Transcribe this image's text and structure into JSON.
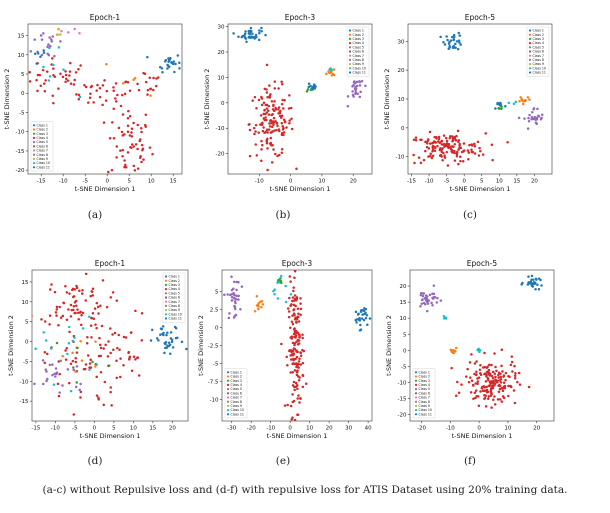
{
  "caption": "(a-c) without Repulsive loss and (d-f) with repulsive loss for ATIS Dataset using 20% training data.",
  "classes": [
    "Class 1",
    "Class 2",
    "Class 3",
    "Class 4",
    "Class 5",
    "Class 6",
    "Class 7",
    "Class 8",
    "Class 9",
    "Class 10",
    "Class 11"
  ],
  "class_colors": [
    "#1f77b4",
    "#ff7f0e",
    "#2ca02c",
    "#d62728",
    "#9467bd",
    "#8c564b",
    "#e377c2",
    "#7f7f7f",
    "#bcbd22",
    "#17becf",
    "#1f77b4"
  ],
  "chart_data": [
    {
      "type": "scatter",
      "panel_label": "(a)",
      "title": "Epoch-1",
      "xlabel": "t-SNE Dimension 1",
      "ylabel": "t-SNE Dimension 2",
      "xlim": [
        -18,
        17
      ],
      "ylim": [
        -21,
        18
      ],
      "xticks": [
        -15,
        -10,
        -5,
        0,
        5,
        10,
        15
      ],
      "yticks": [
        -20,
        -15,
        -10,
        -5,
        0,
        5,
        10,
        15
      ],
      "legend": "bottom-left",
      "clusters": [
        {
          "class": 4,
          "cx": -11,
          "cy": 4,
          "sx": 4,
          "sy": 2.5,
          "n": 40
        },
        {
          "class": 4,
          "cx": -1,
          "cy": 0,
          "sx": 3.5,
          "sy": 2,
          "n": 30
        },
        {
          "class": 4,
          "cx": 5,
          "cy": -13,
          "sx": 2.5,
          "sy": 5,
          "n": 60
        },
        {
          "class": 4,
          "cx": 9,
          "cy": 3,
          "sx": 2,
          "sy": 2,
          "n": 15
        },
        {
          "class": 5,
          "cx": -13,
          "cy": 13,
          "sx": 2,
          "sy": 2.5,
          "n": 18
        },
        {
          "class": 1,
          "cx": 14,
          "cy": 8,
          "sx": 1.4,
          "sy": 1.2,
          "n": 25
        },
        {
          "class": 1,
          "cx": -15,
          "cy": 10,
          "sx": 1,
          "sy": 1,
          "n": 6
        },
        {
          "class": 10,
          "cx": -13,
          "cy": 5,
          "sx": 2.5,
          "sy": 3,
          "n": 8
        },
        {
          "class": 2,
          "cx": 7,
          "cy": 4,
          "sx": 4,
          "sy": 3,
          "n": 5
        },
        {
          "class": 7,
          "cx": -9,
          "cy": 16,
          "sx": 1.5,
          "sy": 1,
          "n": 5
        },
        {
          "class": 9,
          "cx": -11,
          "cy": 16,
          "sx": 1,
          "sy": 0.8,
          "n": 4
        }
      ]
    },
    {
      "type": "scatter",
      "panel_label": "(b)",
      "title": "Epoch-3",
      "xlabel": "t-SNE Dimension 1",
      "ylabel": "t-SNE Dimension 2",
      "xlim": [
        -20,
        26
      ],
      "ylim": [
        -28,
        31
      ],
      "xticks": [
        -10,
        0,
        10,
        20
      ],
      "yticks": [
        -20,
        -10,
        0,
        10,
        20,
        30
      ],
      "legend": "top-right",
      "clusters": [
        {
          "class": 1,
          "cx": -13,
          "cy": 27,
          "sx": 1.8,
          "sy": 1.4,
          "n": 35
        },
        {
          "class": 4,
          "cx": -6,
          "cy": -8,
          "sx": 3.5,
          "sy": 7,
          "n": 150
        },
        {
          "class": 1,
          "cx": 7,
          "cy": 6,
          "sx": 0.8,
          "sy": 1,
          "n": 12
        },
        {
          "class": 2,
          "cx": 13,
          "cy": 12,
          "sx": 0.6,
          "sy": 0.7,
          "n": 12
        },
        {
          "class": 5,
          "cx": 21,
          "cy": 5,
          "sx": 1.2,
          "sy": 2.5,
          "n": 28
        },
        {
          "class": 3,
          "cx": 6,
          "cy": 5,
          "sx": 0.5,
          "sy": 0.5,
          "n": 3
        },
        {
          "class": 10,
          "cx": 13,
          "cy": 13,
          "sx": 0.5,
          "sy": 0.5,
          "n": 3
        }
      ]
    },
    {
      "type": "scatter",
      "panel_label": "(c)",
      "title": "Epoch-5",
      "xlabel": "t-SNE Dimension 1",
      "ylabel": "t-SNE Dimension 2",
      "xlim": [
        -16,
        25
      ],
      "ylim": [
        -16,
        36
      ],
      "xticks": [
        -15,
        -10,
        -5,
        0,
        5,
        10,
        15,
        20
      ],
      "yticks": [
        -10,
        0,
        10,
        20,
        30
      ],
      "legend": "top-right",
      "clusters": [
        {
          "class": 1,
          "cx": -3,
          "cy": 30,
          "sx": 1.3,
          "sy": 1.5,
          "n": 30
        },
        {
          "class": 4,
          "cx": -5,
          "cy": -7,
          "sx": 5.5,
          "sy": 2.5,
          "n": 150
        },
        {
          "class": 1,
          "cx": 10,
          "cy": 8,
          "sx": 0.8,
          "sy": 0.8,
          "n": 10
        },
        {
          "class": 2,
          "cx": 17,
          "cy": 10,
          "sx": 1,
          "sy": 0.6,
          "n": 12
        },
        {
          "class": 5,
          "cx": 20,
          "cy": 3,
          "sx": 1.5,
          "sy": 2,
          "n": 28
        },
        {
          "class": 3,
          "cx": 10,
          "cy": 7,
          "sx": 0.4,
          "sy": 0.4,
          "n": 3
        },
        {
          "class": 10,
          "cx": 14,
          "cy": 9,
          "sx": 0.6,
          "sy": 0.6,
          "n": 3
        }
      ]
    },
    {
      "type": "scatter",
      "panel_label": "(d)",
      "title": "Epoch-1",
      "xlabel": "t-SNE Dimension 1",
      "ylabel": "t-SNE Dimension 2",
      "xlim": [
        -16,
        24
      ],
      "ylim": [
        -20,
        18
      ],
      "xticks": [
        -15,
        -10,
        -5,
        0,
        5,
        10,
        15,
        20
      ],
      "yticks": [
        -15,
        -10,
        -5,
        0,
        5,
        10,
        15
      ],
      "legend": "top-right",
      "clusters": [
        {
          "class": 4,
          "cx": -5,
          "cy": 10,
          "sx": 4.5,
          "sy": 3,
          "n": 70
        },
        {
          "class": 4,
          "cx": -3,
          "cy": -5,
          "sx": 5,
          "sy": 6,
          "n": 70
        },
        {
          "class": 4,
          "cx": 8,
          "cy": -3,
          "sx": 3,
          "sy": 5,
          "n": 25
        },
        {
          "class": 1,
          "cx": 19,
          "cy": 0,
          "sx": 2,
          "sy": 2,
          "n": 35
        },
        {
          "class": 5,
          "cx": -9,
          "cy": -8,
          "sx": 4,
          "sy": 3,
          "n": 25
        },
        {
          "class": 10,
          "cx": -8,
          "cy": -2,
          "sx": 4,
          "sy": 4,
          "n": 15
        },
        {
          "class": 2,
          "cx": -4,
          "cy": -3,
          "sx": 4,
          "sy": 3,
          "n": 8
        },
        {
          "class": 3,
          "cx": -2,
          "cy": -4,
          "sx": 4,
          "sy": 3,
          "n": 6
        }
      ]
    },
    {
      "type": "scatter",
      "panel_label": "(e)",
      "title": "Epoch-3",
      "xlabel": "t-SNE Dimension 1",
      "ylabel": "t-SNE Dimension 2",
      "xlim": [
        -35,
        42
      ],
      "ylim": [
        -13,
        8
      ],
      "xticks": [
        -30,
        -20,
        -10,
        0,
        10,
        20,
        30,
        40
      ],
      "yticks": [
        -10,
        -7.5,
        -5,
        -2.5,
        0,
        2.5,
        5
      ],
      "legend": "bottom-left",
      "clusters": [
        {
          "class": 5,
          "cx": -29,
          "cy": 4,
          "sx": 1.6,
          "sy": 1.4,
          "n": 35
        },
        {
          "class": 4,
          "cx": 3,
          "cy": -3,
          "sx": 2,
          "sy": 4.5,
          "n": 170
        },
        {
          "class": 1,
          "cx": 36,
          "cy": 1.5,
          "sx": 1.8,
          "sy": 0.8,
          "n": 30
        },
        {
          "class": 2,
          "cx": -16,
          "cy": 3,
          "sx": 1,
          "sy": 0.6,
          "n": 12
        },
        {
          "class": 10,
          "cx": -5,
          "cy": 5.5,
          "sx": 2,
          "sy": 1.2,
          "n": 12
        },
        {
          "class": 3,
          "cx": -5,
          "cy": 6,
          "sx": 1,
          "sy": 0.6,
          "n": 4
        }
      ]
    },
    {
      "type": "scatter",
      "panel_label": "(f)",
      "title": "Epoch-5",
      "xlabel": "t-SNE Dimension 1",
      "ylabel": "t-SNE Dimension 2",
      "xlim": [
        -24,
        26
      ],
      "ylim": [
        -22,
        25
      ],
      "xticks": [
        -20,
        -10,
        0,
        10,
        20
      ],
      "yticks": [
        -20,
        -15,
        -10,
        -5,
        0,
        5,
        10,
        15,
        20
      ],
      "legend": "bottom-left",
      "clusters": [
        {
          "class": 5,
          "cx": -18,
          "cy": 16,
          "sx": 2,
          "sy": 1.6,
          "n": 35
        },
        {
          "class": 1,
          "cx": 19,
          "cy": 21,
          "sx": 1.6,
          "sy": 0.8,
          "n": 30
        },
        {
          "class": 4,
          "cx": 4,
          "cy": -10,
          "sx": 4.5,
          "sy": 3.5,
          "n": 170
        },
        {
          "class": 2,
          "cx": -9,
          "cy": 0,
          "sx": 0.5,
          "sy": 0.6,
          "n": 12
        },
        {
          "class": 10,
          "cx": 0,
          "cy": 0,
          "sx": 0.6,
          "sy": 0.3,
          "n": 8
        },
        {
          "class": 10,
          "cx": -12,
          "cy": 10,
          "sx": 0.4,
          "sy": 0.4,
          "n": 4
        }
      ]
    }
  ]
}
